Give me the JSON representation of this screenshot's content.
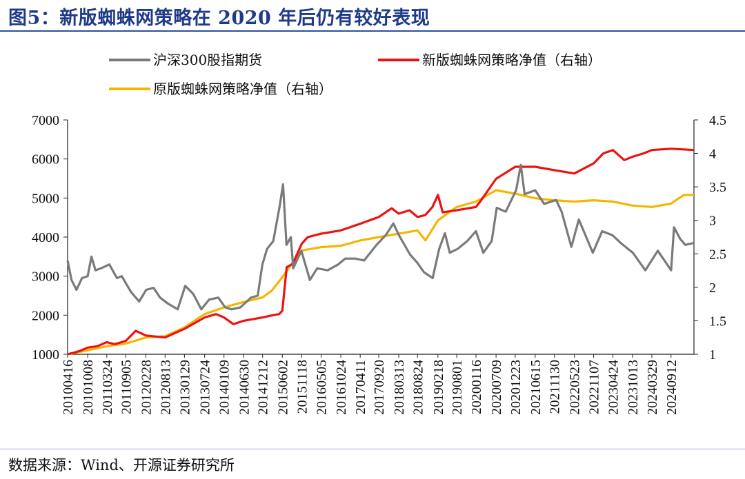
{
  "figure": {
    "title": "图5：新版蜘蛛网策略在 2020 年后仍有较好表现",
    "source": "数据来源：Wind、开源证券研究所"
  },
  "colors": {
    "title": "#1f3a8a",
    "series_index": "#7a7a7a",
    "series_new": "#ee1111",
    "series_old": "#f7b500"
  },
  "chart_data": {
    "type": "line",
    "y_left": {
      "ticks": [
        "7000",
        "6000",
        "5000",
        "4000",
        "3000",
        "2000",
        "1000"
      ],
      "ylim": [
        1000,
        7000
      ]
    },
    "y_right": {
      "ticks": [
        "4.5",
        "4",
        "3.5",
        "3",
        "2.5",
        "2",
        "1.5",
        "1"
      ],
      "ylim": [
        1,
        4.5
      ]
    },
    "x_ticks": [
      "20100416",
      "20101008",
      "20110324",
      "20110905",
      "20120228",
      "20120813",
      "20130129",
      "20130724",
      "20140109",
      "20140630",
      "20141212",
      "20150602",
      "20151118",
      "20160505",
      "20161024",
      "20170411",
      "20170920",
      "20180313",
      "20180824",
      "20190218",
      "20190801",
      "20200116",
      "20200709",
      "20201223",
      "20210615",
      "20211130",
      "20220523",
      "20221107",
      "20230424",
      "20231013",
      "20240329",
      "20240912"
    ],
    "x_range": [
      "2010-04-16",
      "2025-03-31"
    ],
    "legend": [
      "沪深300股指期货",
      "新版蜘蛛网策略净值（右轴）",
      "原版蜘蛛网策略净值（右轴）"
    ],
    "series": [
      {
        "name": "沪深300股指期货",
        "axis": "left",
        "points": [
          [
            "2010-04-16",
            3400
          ],
          [
            "2010-05-20",
            2900
          ],
          [
            "2010-07-02",
            2650
          ],
          [
            "2010-08-20",
            2950
          ],
          [
            "2010-10-08",
            3000
          ],
          [
            "2010-11-10",
            3500
          ],
          [
            "2010-12-15",
            3150
          ],
          [
            "2011-02-01",
            3200
          ],
          [
            "2011-04-15",
            3300
          ],
          [
            "2011-06-20",
            2950
          ],
          [
            "2011-08-01",
            3000
          ],
          [
            "2011-10-20",
            2600
          ],
          [
            "2011-12-31",
            2350
          ],
          [
            "2012-03-01",
            2650
          ],
          [
            "2012-05-05",
            2700
          ],
          [
            "2012-07-01",
            2450
          ],
          [
            "2012-09-05",
            2300
          ],
          [
            "2012-12-01",
            2150
          ],
          [
            "2013-02-05",
            2750
          ],
          [
            "2013-04-15",
            2550
          ],
          [
            "2013-06-25",
            2150
          ],
          [
            "2013-09-01",
            2400
          ],
          [
            "2013-11-20",
            2450
          ],
          [
            "2014-01-20",
            2200
          ],
          [
            "2014-03-15",
            2150
          ],
          [
            "2014-06-01",
            2200
          ],
          [
            "2014-09-01",
            2450
          ],
          [
            "2014-10-30",
            2500
          ],
          [
            "2014-12-10",
            3300
          ],
          [
            "2015-01-20",
            3700
          ],
          [
            "2015-03-15",
            3900
          ],
          [
            "2015-05-10",
            4800
          ],
          [
            "2015-06-08",
            5350
          ],
          [
            "2015-07-08",
            3800
          ],
          [
            "2015-08-15",
            4000
          ],
          [
            "2015-09-05",
            3200
          ],
          [
            "2015-11-15",
            3650
          ],
          [
            "2016-01-28",
            2900
          ],
          [
            "2016-04-01",
            3200
          ],
          [
            "2016-07-01",
            3150
          ],
          [
            "2016-10-01",
            3300
          ],
          [
            "2016-12-01",
            3450
          ],
          [
            "2017-03-01",
            3450
          ],
          [
            "2017-05-15",
            3400
          ],
          [
            "2017-09-01",
            3800
          ],
          [
            "2017-11-20",
            4050
          ],
          [
            "2018-01-25",
            4350
          ],
          [
            "2018-03-15",
            4050
          ],
          [
            "2018-06-20",
            3550
          ],
          [
            "2018-08-20",
            3350
          ],
          [
            "2018-10-20",
            3100
          ],
          [
            "2019-01-03",
            2950
          ],
          [
            "2019-03-01",
            3700
          ],
          [
            "2019-04-20",
            4100
          ],
          [
            "2019-06-01",
            3600
          ],
          [
            "2019-08-10",
            3700
          ],
          [
            "2019-11-01",
            3900
          ],
          [
            "2020-01-15",
            4150
          ],
          [
            "2020-03-20",
            3600
          ],
          [
            "2020-06-01",
            3900
          ],
          [
            "2020-07-15",
            4750
          ],
          [
            "2020-10-01",
            4650
          ],
          [
            "2020-12-31",
            5200
          ],
          [
            "2021-02-10",
            5850
          ],
          [
            "2021-03-15",
            5100
          ],
          [
            "2021-06-15",
            5200
          ],
          [
            "2021-09-01",
            4850
          ],
          [
            "2021-12-15",
            4950
          ],
          [
            "2022-02-01",
            4650
          ],
          [
            "2022-04-27",
            3750
          ],
          [
            "2022-07-01",
            4450
          ],
          [
            "2022-10-31",
            3600
          ],
          [
            "2023-01-20",
            4150
          ],
          [
            "2023-04-20",
            4050
          ],
          [
            "2023-07-01",
            3850
          ],
          [
            "2023-10-15",
            3600
          ],
          [
            "2024-02-01",
            3150
          ],
          [
            "2024-05-20",
            3650
          ],
          [
            "2024-09-13",
            3150
          ],
          [
            "2024-10-08",
            4250
          ],
          [
            "2024-12-01",
            3950
          ],
          [
            "2025-01-15",
            3800
          ],
          [
            "2025-03-31",
            3850
          ]
        ]
      },
      {
        "name": "新版蜘蛛网策略净值（右轴）",
        "axis": "right",
        "points": [
          [
            "2010-04-16",
            1.0
          ],
          [
            "2010-06-01",
            1.02
          ],
          [
            "2010-08-01",
            1.05
          ],
          [
            "2010-10-08",
            1.1
          ],
          [
            "2011-01-01",
            1.12
          ],
          [
            "2011-03-24",
            1.18
          ],
          [
            "2011-06-01",
            1.15
          ],
          [
            "2011-09-05",
            1.2
          ],
          [
            "2011-12-01",
            1.35
          ],
          [
            "2012-02-28",
            1.28
          ],
          [
            "2012-08-13",
            1.25
          ],
          [
            "2013-01-29",
            1.38
          ],
          [
            "2013-07-24",
            1.55
          ],
          [
            "2013-11-01",
            1.6
          ],
          [
            "2014-01-09",
            1.55
          ],
          [
            "2014-04-01",
            1.45
          ],
          [
            "2014-06-30",
            1.5
          ],
          [
            "2014-12-12",
            1.55
          ],
          [
            "2015-03-01",
            1.58
          ],
          [
            "2015-05-05",
            1.6
          ],
          [
            "2015-06-02",
            1.65
          ],
          [
            "2015-07-10",
            2.3
          ],
          [
            "2015-09-01",
            2.35
          ],
          [
            "2015-11-18",
            2.65
          ],
          [
            "2016-01-10",
            2.75
          ],
          [
            "2016-05-05",
            2.8
          ],
          [
            "2016-10-24",
            2.85
          ],
          [
            "2017-04-11",
            2.95
          ],
          [
            "2017-09-20",
            3.05
          ],
          [
            "2018-01-10",
            3.18
          ],
          [
            "2018-03-13",
            3.1
          ],
          [
            "2018-06-15",
            3.15
          ],
          [
            "2018-08-24",
            3.05
          ],
          [
            "2018-11-01",
            3.08
          ],
          [
            "2019-01-01",
            3.2
          ],
          [
            "2019-02-18",
            3.38
          ],
          [
            "2019-04-01",
            3.12
          ],
          [
            "2019-08-01",
            3.15
          ],
          [
            "2020-01-16",
            3.2
          ],
          [
            "2020-03-01",
            3.3
          ],
          [
            "2020-07-09",
            3.62
          ],
          [
            "2020-12-23",
            3.8
          ],
          [
            "2021-06-15",
            3.8
          ],
          [
            "2021-11-30",
            3.75
          ],
          [
            "2022-05-23",
            3.7
          ],
          [
            "2022-11-07",
            3.85
          ],
          [
            "2023-01-30",
            4.0
          ],
          [
            "2023-04-24",
            4.05
          ],
          [
            "2023-08-01",
            3.9
          ],
          [
            "2023-10-13",
            3.95
          ],
          [
            "2024-01-15",
            4.0
          ],
          [
            "2024-03-29",
            4.05
          ],
          [
            "2024-09-12",
            4.07
          ],
          [
            "2025-03-31",
            4.05
          ]
        ]
      },
      {
        "name": "原版蜘蛛网策略净值（右轴）",
        "axis": "right",
        "points": [
          [
            "2010-04-16",
            1.0
          ],
          [
            "2010-10-08",
            1.06
          ],
          [
            "2011-03-24",
            1.12
          ],
          [
            "2011-09-05",
            1.16
          ],
          [
            "2012-02-28",
            1.25
          ],
          [
            "2012-08-13",
            1.27
          ],
          [
            "2013-01-29",
            1.4
          ],
          [
            "2013-07-24",
            1.6
          ],
          [
            "2014-01-09",
            1.7
          ],
          [
            "2014-06-30",
            1.78
          ],
          [
            "2014-12-12",
            1.85
          ],
          [
            "2015-03-01",
            1.95
          ],
          [
            "2015-06-02",
            2.15
          ],
          [
            "2015-08-01",
            2.3
          ],
          [
            "2015-11-18",
            2.55
          ],
          [
            "2016-05-05",
            2.6
          ],
          [
            "2016-10-24",
            2.62
          ],
          [
            "2017-04-11",
            2.7
          ],
          [
            "2017-09-20",
            2.75
          ],
          [
            "2018-03-13",
            2.8
          ],
          [
            "2018-08-24",
            2.85
          ],
          [
            "2018-11-01",
            2.7
          ],
          [
            "2019-02-18",
            3.0
          ],
          [
            "2019-08-01",
            3.2
          ],
          [
            "2020-01-16",
            3.28
          ],
          [
            "2020-07-09",
            3.45
          ],
          [
            "2020-12-23",
            3.4
          ],
          [
            "2021-06-15",
            3.33
          ],
          [
            "2021-11-30",
            3.3
          ],
          [
            "2022-05-23",
            3.28
          ],
          [
            "2022-11-07",
            3.3
          ],
          [
            "2023-04-24",
            3.28
          ],
          [
            "2023-10-13",
            3.22
          ],
          [
            "2024-03-29",
            3.2
          ],
          [
            "2024-09-12",
            3.25
          ],
          [
            "2025-01-01",
            3.38
          ],
          [
            "2025-03-31",
            3.38
          ]
        ]
      }
    ]
  }
}
